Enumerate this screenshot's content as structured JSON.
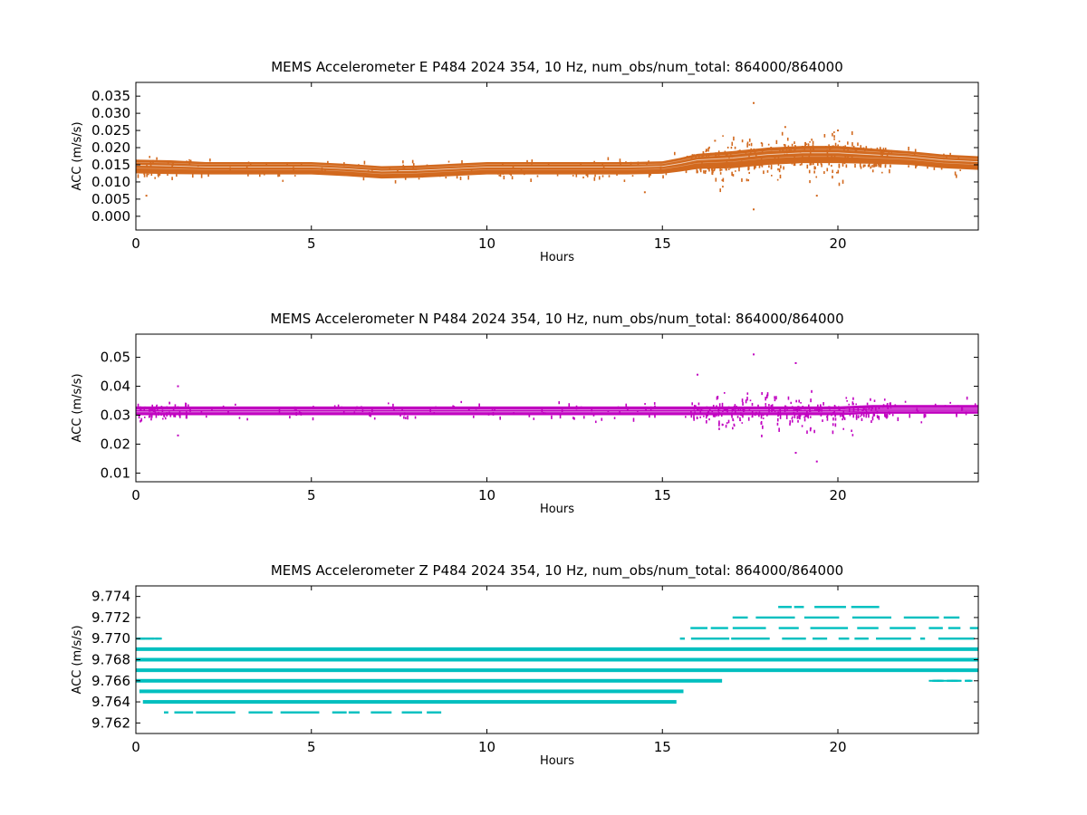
{
  "chart_data": [
    {
      "type": "scatter",
      "title": "MEMS Accelerometer E P484 2024 354, 10 Hz, num_obs/num_total: 864000/864000",
      "xlabel": "Hours",
      "ylabel": "ACC (m/s/s)",
      "xlim": [
        0,
        24
      ],
      "ylim": [
        -0.004,
        0.039
      ],
      "xticks": [
        0,
        5,
        10,
        15,
        20
      ],
      "xtick_labels": [
        "0",
        "5",
        "10",
        "15",
        "20"
      ],
      "yticks": [
        0.0,
        0.005,
        0.01,
        0.015,
        0.02,
        0.025,
        0.03,
        0.035
      ],
      "ytick_labels": [
        "0.000",
        "0.005",
        "0.010",
        "0.015",
        "0.020",
        "0.025",
        "0.030",
        "0.035"
      ],
      "color": "#d2691e",
      "series": [
        {
          "x": [
            0,
            1,
            2,
            3,
            4,
            5,
            6,
            7,
            8,
            9,
            10,
            11,
            12,
            13,
            14,
            15,
            15.5,
            16,
            17,
            17.5,
            18,
            19,
            20,
            21,
            22,
            23,
            24
          ],
          "y": [
            0.0145,
            0.0143,
            0.014,
            0.014,
            0.014,
            0.014,
            0.0135,
            0.0128,
            0.013,
            0.0135,
            0.014,
            0.014,
            0.014,
            0.014,
            0.014,
            0.0142,
            0.015,
            0.016,
            0.0165,
            0.017,
            0.0175,
            0.018,
            0.018,
            0.0175,
            0.017,
            0.016,
            0.0155
          ],
          "spread": [
            0.002,
            0.002,
            0.0018,
            0.0018,
            0.0018,
            0.0018,
            0.0018,
            0.0018,
            0.0018,
            0.0018,
            0.0018,
            0.0018,
            0.0018,
            0.0018,
            0.0018,
            0.0018,
            0.002,
            0.0022,
            0.0025,
            0.0025,
            0.0025,
            0.0025,
            0.0025,
            0.0022,
            0.002,
            0.002,
            0.002
          ]
        }
      ],
      "outliers": [
        {
          "x": 17.6,
          "y": 0.033
        },
        {
          "x": 17.6,
          "y": 0.002
        },
        {
          "x": 0.3,
          "y": 0.006
        },
        {
          "x": 18.5,
          "y": 0.026
        },
        {
          "x": 19.4,
          "y": 0.006
        },
        {
          "x": 14.5,
          "y": 0.007
        },
        {
          "x": 16.5,
          "y": 0.022
        },
        {
          "x": 20.0,
          "y": 0.025
        }
      ]
    },
    {
      "type": "scatter",
      "title": "MEMS Accelerometer N P484 2024 354, 10 Hz, num_obs/num_total: 864000/864000",
      "xlabel": "Hours",
      "ylabel": "ACC (m/s/s)",
      "xlim": [
        0,
        24
      ],
      "ylim": [
        0.007,
        0.058
      ],
      "xticks": [
        0,
        5,
        10,
        15,
        20
      ],
      "xtick_labels": [
        "0",
        "5",
        "10",
        "15",
        "20"
      ],
      "yticks": [
        0.01,
        0.02,
        0.03,
        0.04,
        0.05
      ],
      "ytick_labels": [
        "0.01",
        "0.02",
        "0.03",
        "0.04",
        "0.05"
      ],
      "color": "#c000c0",
      "series": [
        {
          "x": [
            0,
            1,
            2,
            3,
            4,
            5,
            6,
            7,
            8,
            9,
            10,
            11,
            12,
            13,
            14,
            15,
            16,
            17,
            18,
            19,
            20,
            21,
            22,
            23,
            24
          ],
          "y": [
            0.0315,
            0.0315,
            0.0315,
            0.0315,
            0.0315,
            0.0315,
            0.0315,
            0.0315,
            0.0315,
            0.0315,
            0.0315,
            0.0315,
            0.0315,
            0.0315,
            0.0315,
            0.0315,
            0.0315,
            0.0315,
            0.0315,
            0.0315,
            0.0315,
            0.032,
            0.032,
            0.032,
            0.032
          ],
          "spread": [
            0.0015,
            0.0015,
            0.0015,
            0.0015,
            0.0015,
            0.0015,
            0.0015,
            0.0015,
            0.0015,
            0.0015,
            0.0015,
            0.0015,
            0.0015,
            0.0015,
            0.0015,
            0.0015,
            0.0015,
            0.0015,
            0.0015,
            0.0015,
            0.0015,
            0.0015,
            0.0015,
            0.0015,
            0.0015
          ]
        }
      ],
      "outliers": [
        {
          "x": 17.6,
          "y": 0.051
        },
        {
          "x": 18.8,
          "y": 0.048
        },
        {
          "x": 19.4,
          "y": 0.014
        },
        {
          "x": 18.8,
          "y": 0.017
        },
        {
          "x": 16.0,
          "y": 0.044
        },
        {
          "x": 1.2,
          "y": 0.04
        },
        {
          "x": 1.2,
          "y": 0.023
        }
      ]
    },
    {
      "type": "scatter",
      "title": "MEMS Accelerometer Z P484 2024 354, 10 Hz, num_obs/num_total: 864000/864000",
      "xlabel": "Hours",
      "ylabel": "ACC (m/s/s)",
      "xlim": [
        0,
        24
      ],
      "ylim": [
        9.761,
        9.775
      ],
      "xticks": [
        0,
        5,
        10,
        15,
        20
      ],
      "xtick_labels": [
        "0",
        "5",
        "10",
        "15",
        "20"
      ],
      "yticks": [
        9.762,
        9.764,
        9.766,
        9.768,
        9.77,
        9.772,
        9.774
      ],
      "ytick_labels": [
        "9.762",
        "9.764",
        "9.766",
        "9.768",
        "9.770",
        "9.772",
        "9.774"
      ],
      "color": "#00bfbf",
      "levels": [
        {
          "y": 9.763,
          "x_start": 0.8,
          "x_end": 8.7
        },
        {
          "y": 9.764,
          "x_start": 0.2,
          "x_end": 15.4
        },
        {
          "y": 9.765,
          "x_start": 0.1,
          "x_end": 15.6
        },
        {
          "y": 9.766,
          "x_start": 0.0,
          "x_end": 16.7
        },
        {
          "y": 9.767,
          "x_start": 0.0,
          "x_end": 24.0
        },
        {
          "y": 9.768,
          "x_start": 0.0,
          "x_end": 24.0
        },
        {
          "y": 9.769,
          "x_start": 0.0,
          "x_end": 24.0
        },
        {
          "y": 9.77,
          "x_start": 15.5,
          "x_end": 24.0
        },
        {
          "y": 9.771,
          "x_start": 15.8,
          "x_end": 24.0
        },
        {
          "y": 9.772,
          "x_start": 17.0,
          "x_end": 23.5
        },
        {
          "y": 9.773,
          "x_start": 18.3,
          "x_end": 21.3
        }
      ]
    }
  ]
}
